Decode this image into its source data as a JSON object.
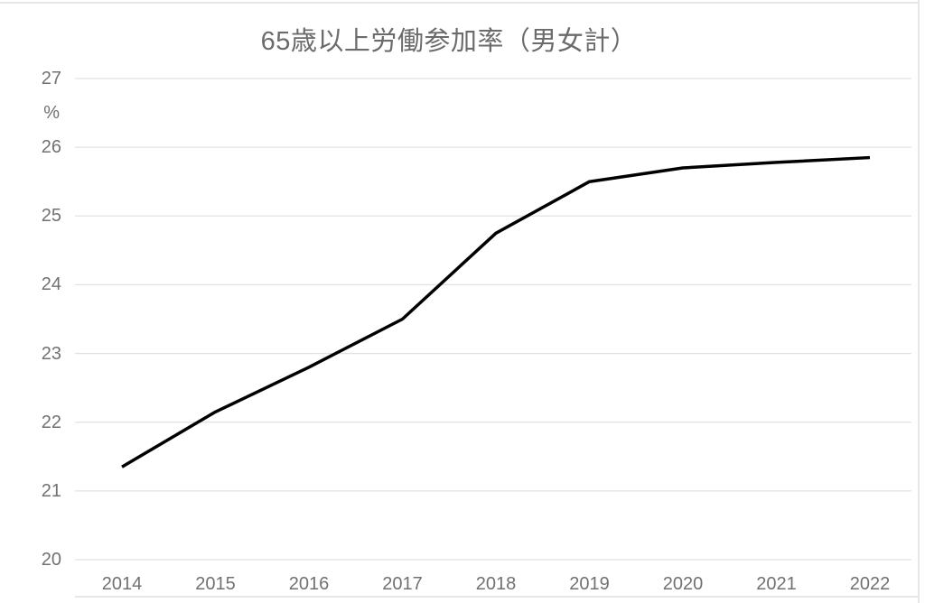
{
  "chart_data": {
    "type": "line",
    "title": "65歳以上労働参加率（男女計）",
    "unit_label": "%",
    "xlabel": "",
    "ylabel": "%",
    "x": [
      2014,
      2015,
      2016,
      2017,
      2018,
      2019,
      2020,
      2021,
      2022
    ],
    "series": [
      {
        "name": "65歳以上労働参加率（男女計）",
        "values": [
          21.35,
          22.15,
          22.8,
          23.5,
          24.75,
          25.5,
          25.7,
          25.78,
          25.85
        ]
      }
    ],
    "ylim": [
      20,
      27
    ],
    "yticks": [
      20,
      21,
      22,
      23,
      24,
      25,
      26,
      27
    ],
    "grid": true,
    "legend_position": "none",
    "colors": {
      "line": "#000000",
      "gridline": "#e2e2e2",
      "title_text": "#6b6b6b",
      "axis_text": "#717171",
      "chart_border": "#e7e7e7",
      "background": "#ffffff"
    },
    "line_width": 3.5
  }
}
